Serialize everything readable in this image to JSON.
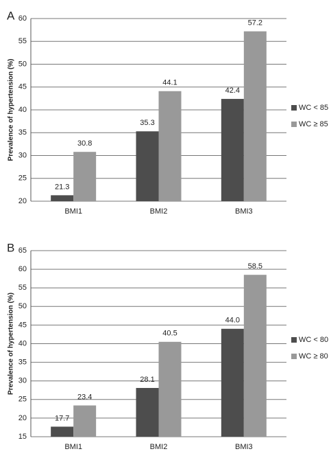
{
  "chart_data": [
    {
      "type": "bar",
      "label": "A",
      "y_label": "Prevalence of hypertension (%)",
      "categories": [
        "BMI1",
        "BMI2",
        "BMI3"
      ],
      "series": [
        {
          "name": "WC < 85",
          "color": "#4d4d4d",
          "values": [
            21.3,
            35.3,
            42.4
          ]
        },
        {
          "name": "WC ≥ 85",
          "color": "#999999",
          "values": [
            30.8,
            44.1,
            57.2
          ]
        }
      ],
      "ylim": [
        20,
        60
      ],
      "yticks": [
        20,
        25,
        30,
        35,
        40,
        45,
        50,
        55,
        60
      ],
      "grid": true
    },
    {
      "type": "bar",
      "label": "B",
      "y_label": "Prevalence of hypertension (%)",
      "categories": [
        "BMI1",
        "BMI2",
        "BMI3"
      ],
      "series": [
        {
          "name": "WC < 80",
          "color": "#4d4d4d",
          "values": [
            17.7,
            28.1,
            44.0
          ],
          "value_labels": [
            "17.7",
            "28.1",
            "44.0"
          ]
        },
        {
          "name": "WC ≥ 80",
          "color": "#999999",
          "values": [
            23.4,
            40.5,
            58.5
          ]
        }
      ],
      "ylim": [
        15,
        65
      ],
      "yticks": [
        15,
        20,
        25,
        30,
        35,
        40,
        45,
        50,
        55,
        60,
        65
      ],
      "grid": true
    }
  ]
}
